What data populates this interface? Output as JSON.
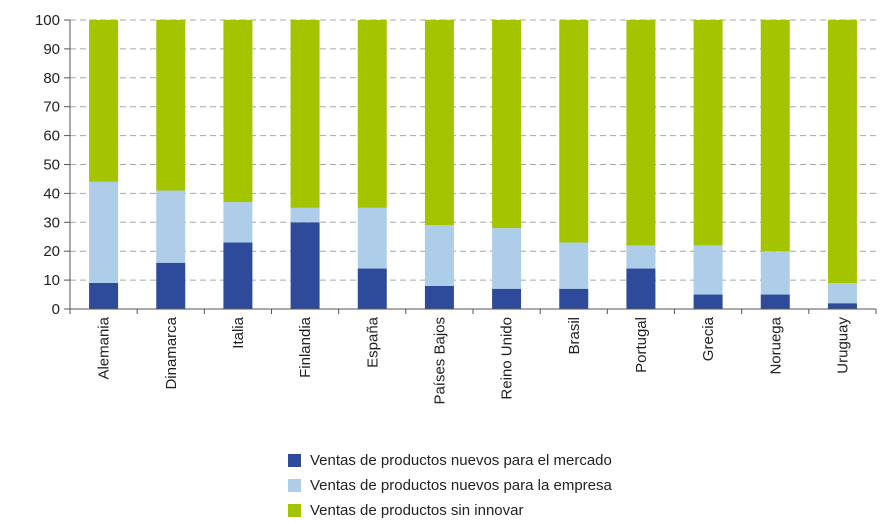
{
  "chart_data": {
    "type": "bar",
    "stacked": true,
    "categories": [
      "Alemania",
      "Dinamarca",
      "Italia",
      "Finlandia",
      "España",
      "Países Bajos",
      "Reino Unido",
      "Brasil",
      "Portugal",
      "Grecia",
      "Noruega",
      "Uruguay"
    ],
    "series": [
      {
        "name": "Ventas de productos nuevos para el mercado",
        "color": "#2e4a9b",
        "values": [
          9,
          16,
          23,
          30,
          14,
          8,
          7,
          7,
          14,
          5,
          5,
          2
        ]
      },
      {
        "name": "Ventas de productos nuevos  para la empresa",
        "color": "#aecde9",
        "values": [
          35,
          25,
          14,
          5,
          21,
          21,
          21,
          16,
          8,
          17,
          15,
          7
        ]
      },
      {
        "name": "Ventas de productos sin innovar",
        "color": "#a4c400",
        "values": [
          56,
          59,
          63,
          65,
          65,
          71,
          72,
          77,
          78,
          78,
          80,
          91
        ]
      }
    ],
    "ylim": [
      0,
      100
    ],
    "yticks": [
      "0",
      "10",
      "20",
      "30",
      "40",
      "50",
      "60",
      "70",
      "80",
      "90",
      "100"
    ],
    "grid": "horizontal-dashed",
    "legend_position": "bottom"
  }
}
